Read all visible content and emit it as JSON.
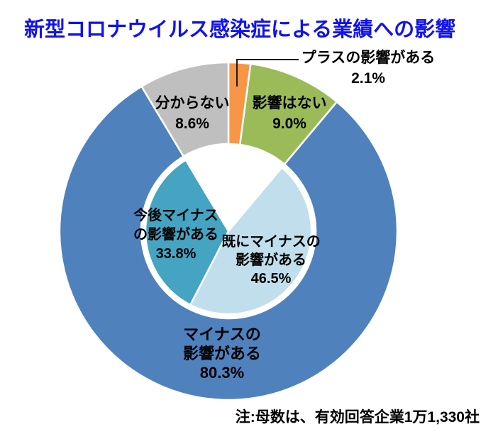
{
  "title": {
    "text": "新型コロナウイルス感染症による業績への影響",
    "color": "#1212EE"
  },
  "note": {
    "text": "注:母数は、有効回答企業1万1,330社"
  },
  "chart_data": {
    "type": "pie",
    "variant": "donut-ring-with-inner-breakdown-pie",
    "title": "新型コロナウイルス感染症による業績への影響",
    "note": "注:母数は、有効回答企業1万1,330社",
    "start_angle_deg": 0,
    "direction": "clockwise",
    "unit": "%",
    "outer_ring": {
      "segments": [
        {
          "key": "plus",
          "label": "プラスの影響がある",
          "value_pct": 2.1,
          "color": "#F79646"
        },
        {
          "key": "none",
          "label": "影響はない",
          "value_pct": 9.0,
          "color": "#9BBB59"
        },
        {
          "key": "minus",
          "label": "マイナスの影響がある",
          "value_pct": 80.3,
          "color": "#4F81BD"
        },
        {
          "key": "unknown",
          "label": "分からない",
          "value_pct": 8.6,
          "color": "#BFBFBF"
        }
      ]
    },
    "inner_pie": {
      "aligned_with_outer_key": "minus",
      "segments": [
        {
          "key": "already",
          "label": "既にマイナスの影響がある",
          "value_pct": 46.5,
          "color": "#C0DEEB"
        },
        {
          "key": "future",
          "label": "今後マイナスの影響がある",
          "value_pct": 33.8,
          "color": "#44A4C2"
        },
        {
          "key": "blank",
          "label": "",
          "value_pct": 19.7,
          "color": "#FFFFFF"
        }
      ]
    }
  },
  "labels": {
    "plus": {
      "line1": "プラスの影響がある",
      "line2": "2.1%"
    },
    "none": {
      "line1": "影響はない",
      "line2": "9.0%"
    },
    "unknown": {
      "line1": "分からない",
      "line2": "8.6%"
    },
    "minus": {
      "line1": "マイナスの",
      "line2": "影響がある",
      "line3": "80.3%"
    },
    "already": {
      "line1": "既にマイナスの",
      "line2": "影響がある",
      "line3": "46.5%"
    },
    "future": {
      "line1": "今後マイナス",
      "line2": "の影響がある",
      "line3": "33.8%"
    }
  }
}
